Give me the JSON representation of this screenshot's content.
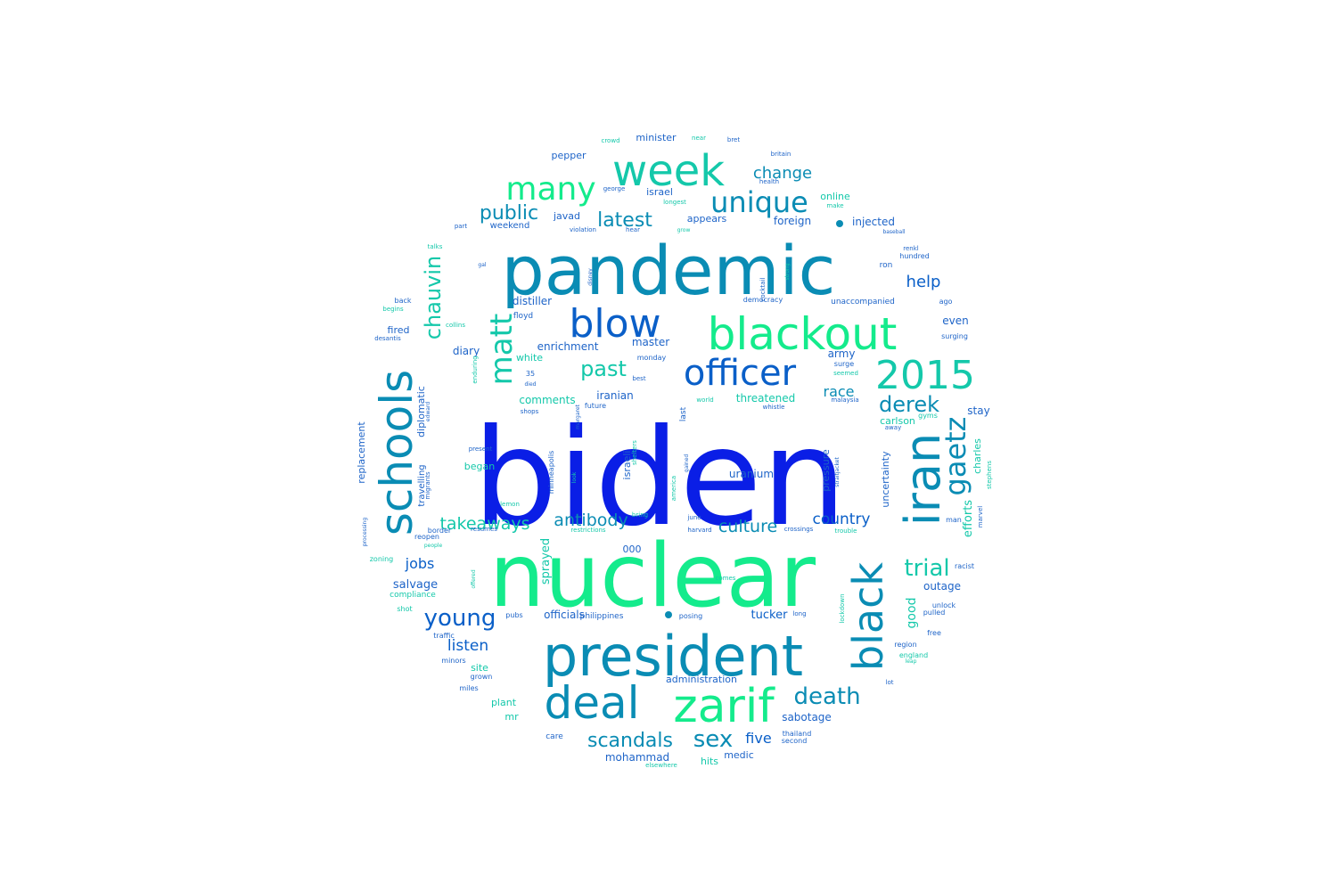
{
  "palette": {
    "blue": "#0a1ee6",
    "teal": "#0a8cb4",
    "mid": "#0a5fc8",
    "green": "#14eb8c",
    "aqua": "#14c8aa",
    "steel": "#1e64c8"
  },
  "words": [
    {
      "text": "biden",
      "c": "blue"
    },
    {
      "text": "nuclear",
      "c": "green"
    },
    {
      "text": "pandemic",
      "c": "teal"
    },
    {
      "text": "president",
      "c": "teal"
    },
    {
      "text": "blackout",
      "c": "green"
    },
    {
      "text": "schools",
      "c": "teal"
    },
    {
      "text": "iran",
      "c": "teal"
    },
    {
      "text": "week",
      "c": "aqua"
    },
    {
      "text": "blow",
      "c": "mid"
    },
    {
      "text": "officer",
      "c": "mid"
    },
    {
      "text": "2015",
      "c": "aqua"
    },
    {
      "text": "zarif",
      "c": "green"
    },
    {
      "text": "deal",
      "c": "teal"
    },
    {
      "text": "black",
      "c": "teal"
    },
    {
      "text": "many",
      "c": "green"
    },
    {
      "text": "unique",
      "c": "teal"
    },
    {
      "text": "gaetz",
      "c": "teal"
    },
    {
      "text": "matt",
      "c": "aqua"
    },
    {
      "text": "derek",
      "c": "teal"
    },
    {
      "text": "death",
      "c": "teal"
    },
    {
      "text": "sex",
      "c": "teal"
    },
    {
      "text": "young",
      "c": "mid"
    },
    {
      "text": "scandals",
      "c": "teal"
    },
    {
      "text": "trial",
      "c": "aqua"
    },
    {
      "text": "chauvin",
      "c": "aqua"
    },
    {
      "text": "past",
      "c": "aqua"
    },
    {
      "text": "latest",
      "c": "teal"
    },
    {
      "text": "public",
      "c": "teal"
    },
    {
      "text": "change",
      "c": "teal"
    },
    {
      "text": "takeaways",
      "c": "aqua"
    },
    {
      "text": "antibody",
      "c": "teal"
    },
    {
      "text": "country",
      "c": "mid"
    },
    {
      "text": "culture",
      "c": "teal"
    },
    {
      "text": "help",
      "c": "mid"
    },
    {
      "text": "race",
      "c": "teal"
    },
    {
      "text": "jobs",
      "c": "mid"
    },
    {
      "text": "listen",
      "c": "mid"
    },
    {
      "text": "five",
      "c": "mid"
    },
    {
      "text": "good",
      "c": "aqua"
    },
    {
      "text": "sprayed",
      "c": "aqua"
    },
    {
      "text": "salvage",
      "c": "steel"
    },
    {
      "text": "outage",
      "c": "steel"
    },
    {
      "text": "tucker",
      "c": "mid"
    },
    {
      "text": "officials",
      "c": "steel"
    },
    {
      "text": "sabotage",
      "c": "steel"
    },
    {
      "text": "mohammad",
      "c": "steel"
    },
    {
      "text": "medic",
      "c": "steel"
    },
    {
      "text": "hits",
      "c": "aqua"
    },
    {
      "text": "plant",
      "c": "aqua"
    },
    {
      "text": "mr",
      "c": "aqua"
    },
    {
      "text": "site",
      "c": "aqua"
    },
    {
      "text": "administration",
      "c": "steel"
    },
    {
      "text": "threatened",
      "c": "aqua"
    },
    {
      "text": "comments",
      "c": "aqua"
    },
    {
      "text": "iranian",
      "c": "steel"
    },
    {
      "text": "enrichment",
      "c": "steel"
    },
    {
      "text": "diary",
      "c": "steel"
    },
    {
      "text": "white",
      "c": "aqua"
    },
    {
      "text": "distiller",
      "c": "steel"
    },
    {
      "text": "master",
      "c": "steel"
    },
    {
      "text": "army",
      "c": "steel"
    },
    {
      "text": "even",
      "c": "steel"
    },
    {
      "text": "stay",
      "c": "steel"
    },
    {
      "text": "carlson",
      "c": "aqua"
    },
    {
      "text": "efforts",
      "c": "aqua"
    },
    {
      "text": "charles",
      "c": "aqua"
    },
    {
      "text": "uncertainty",
      "c": "steel"
    },
    {
      "text": "pressure",
      "c": "steel"
    },
    {
      "text": "uranium",
      "c": "steel"
    },
    {
      "text": "israeli",
      "c": "steel"
    },
    {
      "text": "began",
      "c": "aqua"
    },
    {
      "text": "diplomatic",
      "c": "steel"
    },
    {
      "text": "replacement",
      "c": "steel"
    },
    {
      "text": "fired",
      "c": "steel"
    },
    {
      "text": "minister",
      "c": "steel"
    },
    {
      "text": "pepper",
      "c": "steel"
    },
    {
      "text": "israel",
      "c": "steel"
    },
    {
      "text": "javad",
      "c": "steel"
    },
    {
      "text": "weekend",
      "c": "steel"
    },
    {
      "text": "appears",
      "c": "steel"
    },
    {
      "text": "foreign",
      "c": "steel"
    },
    {
      "text": "injected",
      "c": "steel"
    },
    {
      "text": "online",
      "c": "aqua"
    },
    {
      "text": "000",
      "c": "steel"
    },
    {
      "text": "unaccompanied",
      "c": "steel"
    },
    {
      "text": "floyd",
      "c": "steel"
    },
    {
      "text": "monday",
      "c": "steel"
    },
    {
      "text": "surge",
      "c": "steel"
    },
    {
      "text": "last",
      "c": "steel"
    },
    {
      "text": "travelling",
      "c": "steel"
    },
    {
      "text": "minneapolis",
      "c": "steel"
    },
    {
      "text": "people",
      "c": "aqua"
    },
    {
      "text": "migrants",
      "c": "steel"
    },
    {
      "text": "border",
      "c": "steel"
    },
    {
      "text": "reopen",
      "c": "steel"
    },
    {
      "text": "zoning",
      "c": "aqua"
    },
    {
      "text": "compliance",
      "c": "aqua"
    },
    {
      "text": "shot",
      "c": "aqua"
    },
    {
      "text": "traffic",
      "c": "steel"
    },
    {
      "text": "minors",
      "c": "steel"
    },
    {
      "text": "miles",
      "c": "steel"
    },
    {
      "text": "grown",
      "c": "steel"
    },
    {
      "text": "care",
      "c": "steel"
    },
    {
      "text": "elsewhere",
      "c": "aqua"
    },
    {
      "text": "thailand",
      "c": "steel"
    },
    {
      "text": "second",
      "c": "steel"
    },
    {
      "text": "philippines",
      "c": "steel"
    },
    {
      "text": "posing",
      "c": "steel"
    },
    {
      "text": "pubs",
      "c": "steel"
    },
    {
      "text": "lockdown",
      "c": "aqua"
    },
    {
      "text": "region",
      "c": "steel"
    },
    {
      "text": "england",
      "c": "aqua"
    },
    {
      "text": "free",
      "c": "steel"
    },
    {
      "text": "pulled",
      "c": "steel"
    },
    {
      "text": "unlock",
      "c": "steel"
    },
    {
      "text": "racist",
      "c": "steel"
    },
    {
      "text": "man",
      "c": "steel"
    },
    {
      "text": "marvel",
      "c": "steel"
    },
    {
      "text": "stephens",
      "c": "aqua"
    },
    {
      "text": "surging",
      "c": "steel"
    },
    {
      "text": "ago",
      "c": "steel"
    },
    {
      "text": "hundred",
      "c": "steel"
    },
    {
      "text": "ron",
      "c": "steel"
    },
    {
      "text": "renkl",
      "c": "steel"
    },
    {
      "text": "desantis",
      "c": "steel"
    },
    {
      "text": "begins",
      "c": "aqua"
    },
    {
      "text": "back",
      "c": "steel"
    },
    {
      "text": "talks",
      "c": "aqua"
    },
    {
      "text": "part",
      "c": "steel"
    },
    {
      "text": "crowd",
      "c": "aqua"
    },
    {
      "text": "britain",
      "c": "steel"
    },
    {
      "text": "health",
      "c": "steel"
    },
    {
      "text": "bret",
      "c": "steel"
    },
    {
      "text": "near",
      "c": "aqua"
    },
    {
      "text": "george",
      "c": "steel"
    },
    {
      "text": "longest",
      "c": "aqua"
    },
    {
      "text": "make",
      "c": "aqua"
    },
    {
      "text": "hear",
      "c": "steel"
    },
    {
      "text": "violation",
      "c": "steel"
    },
    {
      "text": "strong",
      "c": "aqua"
    },
    {
      "text": "cocktail",
      "c": "steel"
    },
    {
      "text": "disney",
      "c": "steel"
    },
    {
      "text": "gal",
      "c": "steel"
    },
    {
      "text": "collins",
      "c": "aqua"
    },
    {
      "text": "enduring",
      "c": "aqua"
    },
    {
      "text": "35",
      "c": "steel"
    },
    {
      "text": "died",
      "c": "steel"
    },
    {
      "text": "shops",
      "c": "steel"
    },
    {
      "text": "margaret",
      "c": "steel"
    },
    {
      "text": "future",
      "c": "steel"
    },
    {
      "text": "shelters",
      "c": "aqua"
    },
    {
      "text": "world",
      "c": "aqua"
    },
    {
      "text": "malaysia",
      "c": "steel"
    },
    {
      "text": "gyms",
      "c": "aqua"
    },
    {
      "text": "away",
      "c": "steel"
    },
    {
      "text": "whistle",
      "c": "steel"
    },
    {
      "text": "seemed",
      "c": "aqua"
    },
    {
      "text": "best",
      "c": "steel"
    },
    {
      "text": "america",
      "c": "aqua"
    },
    {
      "text": "gained",
      "c": "steel"
    },
    {
      "text": "straitjacket",
      "c": "steel"
    },
    {
      "text": "lemon",
      "c": "aqua"
    },
    {
      "text": "bring",
      "c": "aqua"
    },
    {
      "text": "june",
      "c": "steel"
    },
    {
      "text": "harvard",
      "c": "steel"
    },
    {
      "text": "restrictions",
      "c": "aqua"
    },
    {
      "text": "crossings",
      "c": "steel"
    },
    {
      "text": "trouble",
      "c": "aqua"
    },
    {
      "text": "resumes",
      "c": "steel"
    },
    {
      "text": "present",
      "c": "steel"
    },
    {
      "text": "processing",
      "c": "steel"
    },
    {
      "text": "edward",
      "c": "steel"
    },
    {
      "text": "offered",
      "c": "aqua"
    },
    {
      "text": "comes",
      "c": "aqua"
    },
    {
      "text": "long",
      "c": "steel"
    },
    {
      "text": "democracy",
      "c": "steel"
    },
    {
      "text": "look",
      "c": "aqua"
    },
    {
      "text": "lot",
      "c": "steel"
    },
    {
      "text": "leap",
      "c": "aqua"
    },
    {
      "text": "baseball",
      "c": "steel"
    },
    {
      "text": "grow",
      "c": "aqua"
    }
  ]
}
